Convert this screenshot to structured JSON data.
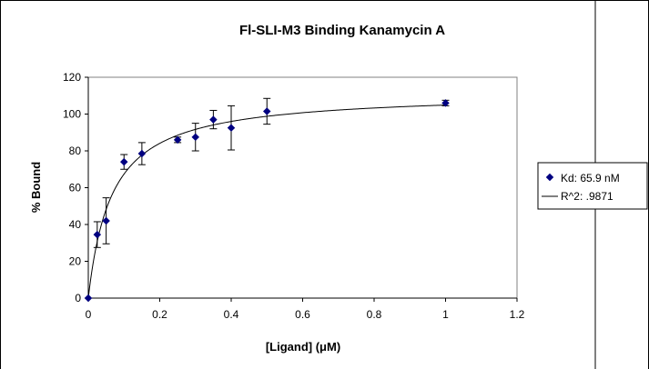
{
  "chart_data": {
    "type": "scatter",
    "title": "Fl-SLI-M3 Binding Kanamycin A",
    "xlabel": "[Ligand] (μM)",
    "ylabel": "% Bound",
    "xlim": [
      0,
      1.2
    ],
    "ylim": [
      0,
      120
    ],
    "xticks": [
      0,
      0.2,
      0.4,
      0.6,
      0.8,
      1,
      1.2
    ],
    "xtick_labels": [
      "0",
      "0.2",
      "0.4",
      "0.6",
      "0.8",
      "1",
      "1.2"
    ],
    "yticks": [
      0,
      20,
      40,
      60,
      80,
      100,
      120
    ],
    "ytick_labels": [
      "0",
      "20",
      "40",
      "60",
      "80",
      "100",
      "120"
    ],
    "grid": false,
    "legend_position": "right",
    "marker_color": "#000080",
    "series": [
      {
        "name": "Kd: 65.9 nM",
        "x": [
          0,
          0.025,
          0.05,
          0.1,
          0.15,
          0.25,
          0.3,
          0.35,
          0.4,
          0.5,
          1.0
        ],
        "y": [
          0,
          34.5,
          42,
          74,
          78.5,
          86,
          87.5,
          97,
          92.5,
          101.5,
          106
        ],
        "error": [
          0,
          7,
          12.5,
          4,
          6,
          1.5,
          7.5,
          5,
          12,
          7,
          1.5
        ]
      }
    ],
    "fit": {
      "name": "R^2: .9871",
      "model": "one-site binding",
      "bmax": 111.8,
      "kd": 0.0659
    }
  }
}
